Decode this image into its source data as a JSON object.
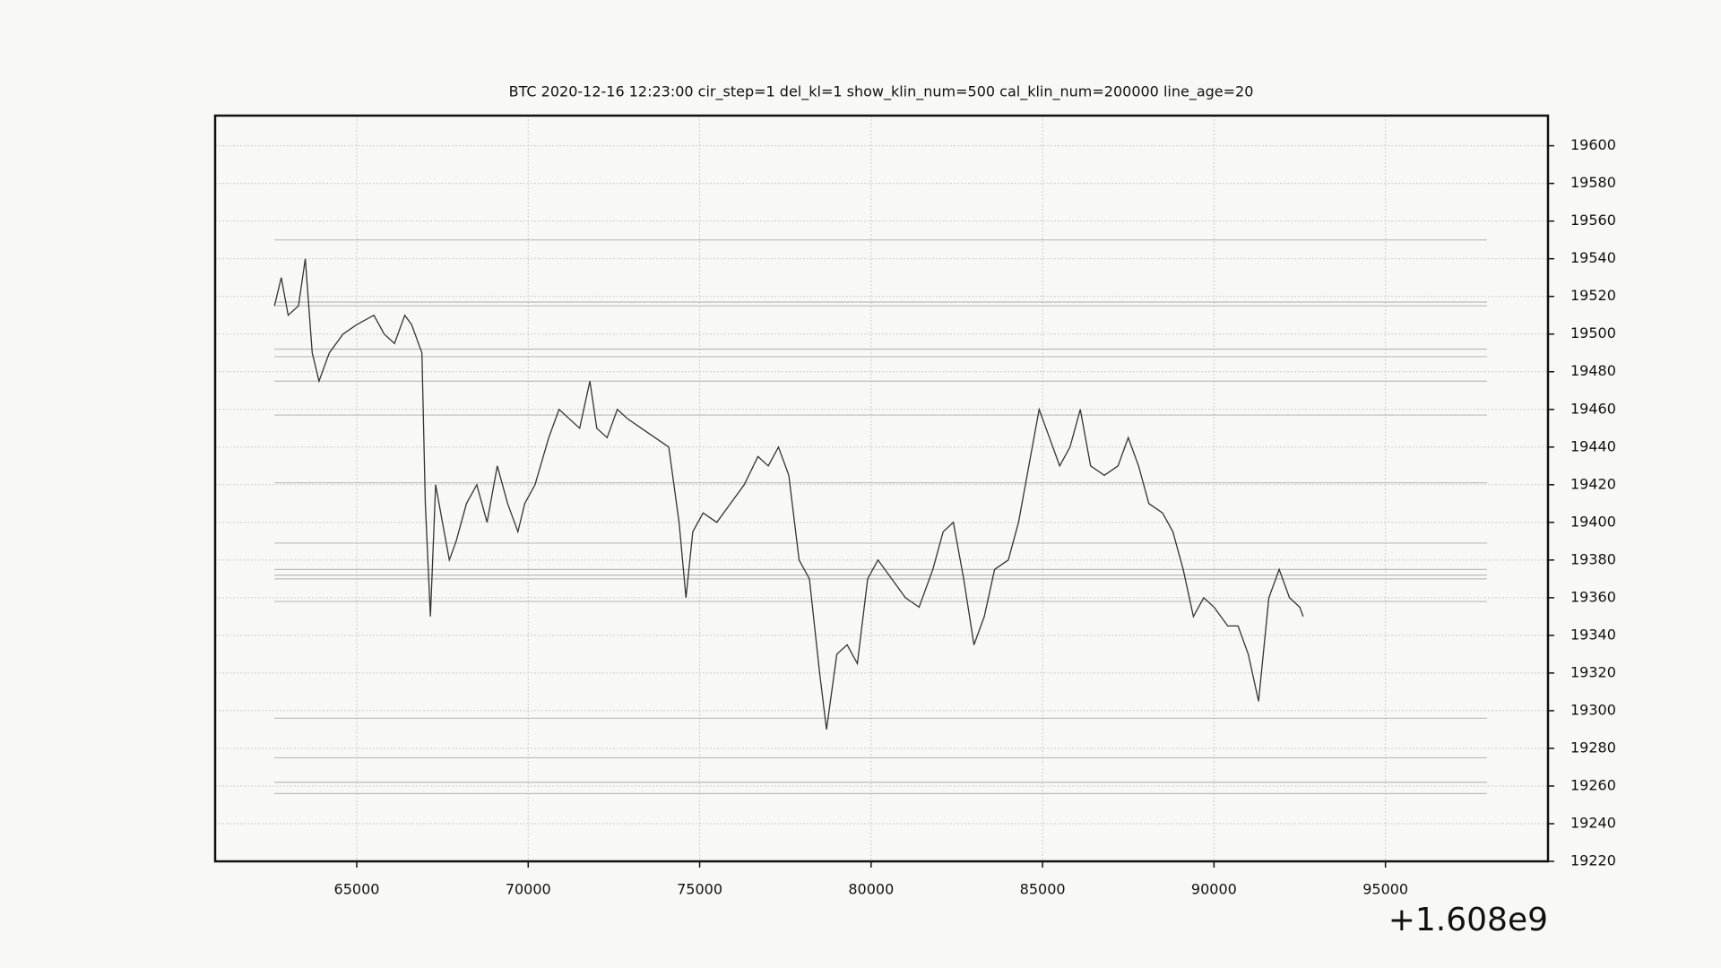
{
  "chart_data": {
    "type": "line",
    "title": "BTC    2020-12-16 12:23:00 cir_step=1 del_kl=1 show_klin_num=500 cal_klin_num=200000 line_age=20",
    "x_offset_label": "+1.608e9",
    "x": [
      62600,
      62800,
      63000,
      63300,
      63500,
      63700,
      63900,
      64200,
      64600,
      65000,
      65500,
      65800,
      66100,
      66400,
      66600,
      66900,
      67000,
      67150,
      67300,
      67500,
      67700,
      67900,
      68200,
      68500,
      68800,
      69100,
      69400,
      69700,
      69900,
      70200,
      70600,
      70900,
      71200,
      71500,
      71800,
      72000,
      72300,
      72600,
      72900,
      73300,
      73700,
      74100,
      74400,
      74600,
      74800,
      75100,
      75500,
      75900,
      76300,
      76700,
      77000,
      77300,
      77600,
      77900,
      78200,
      78500,
      78700,
      79000,
      79300,
      79600,
      79900,
      80200,
      80600,
      81000,
      81400,
      81800,
      82100,
      82400,
      82700,
      83000,
      83300,
      83600,
      84000,
      84300,
      84600,
      84900,
      85200,
      85500,
      85800,
      86100,
      86400,
      86800,
      87200,
      87500,
      87800,
      88100,
      88500,
      88800,
      89100,
      89400,
      89700,
      90000,
      90400,
      90700,
      91000,
      91300,
      91600,
      91900,
      92200,
      92500,
      92600
    ],
    "series": [
      {
        "name": "BTC",
        "color": "#333333",
        "values": [
          19515,
          19530,
          19510,
          19515,
          19540,
          19490,
          19475,
          19490,
          19500,
          19505,
          19510,
          19500,
          19495,
          19510,
          19505,
          19490,
          19410,
          19350,
          19420,
          19400,
          19380,
          19390,
          19410,
          19420,
          19400,
          19430,
          19410,
          19395,
          19410,
          19420,
          19445,
          19460,
          19455,
          19450,
          19475,
          19450,
          19445,
          19460,
          19455,
          19450,
          19445,
          19440,
          19400,
          19360,
          19395,
          19405,
          19400,
          19410,
          19420,
          19435,
          19430,
          19440,
          19425,
          19380,
          19370,
          19320,
          19290,
          19330,
          19335,
          19325,
          19370,
          19380,
          19370,
          19360,
          19355,
          19375,
          19395,
          19400,
          19370,
          19335,
          19350,
          19375,
          19380,
          19400,
          19430,
          19460,
          19445,
          19430,
          19440,
          19460,
          19430,
          19425,
          19430,
          19445,
          19430,
          19410,
          19405,
          19395,
          19375,
          19350,
          19360,
          19355,
          19345,
          19345,
          19330,
          19305,
          19360,
          19375,
          19360,
          19355,
          19350
        ]
      }
    ],
    "hlines": [
      19550,
      19517,
      19515,
      19492,
      19488,
      19475,
      19457,
      19421,
      19389,
      19375,
      19372,
      19370,
      19358,
      19296,
      19275,
      19262,
      19256
    ],
    "xlim": [
      60870,
      99740
    ],
    "ylim": [
      19220,
      19616
    ],
    "xticks": [
      65000,
      70000,
      75000,
      80000,
      85000,
      90000,
      95000
    ],
    "yticks": [
      19220,
      19240,
      19260,
      19280,
      19300,
      19320,
      19340,
      19360,
      19380,
      19400,
      19420,
      19440,
      19460,
      19480,
      19500,
      19520,
      19540,
      19560,
      19580,
      19600
    ],
    "grid": true
  }
}
